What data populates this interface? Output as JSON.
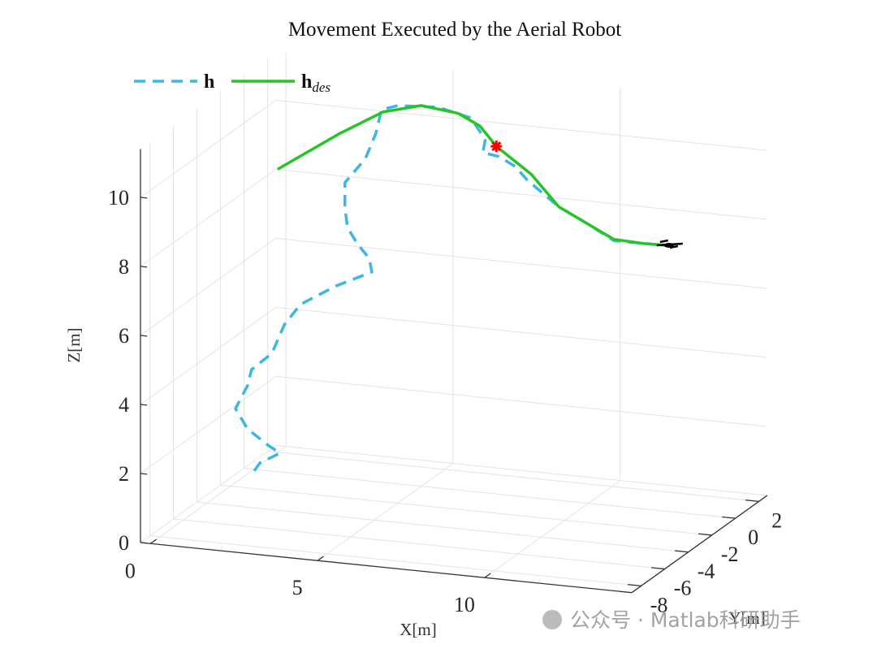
{
  "chart_data": {
    "type": "line3d",
    "title": "Movement Executed by the Aerial Robot",
    "xlabel": "X[m]",
    "ylabel": "Y[m]",
    "zlabel": "Z[m]",
    "xlim": [
      -0.3,
      14.4
    ],
    "ylim": [
      -8.8,
      2.7
    ],
    "zlim": [
      0,
      11.4
    ],
    "xticks": [
      0,
      5,
      10
    ],
    "yticks": [
      -8,
      -6,
      -4,
      -2,
      0,
      2
    ],
    "zticks": [
      0,
      2,
      4,
      6,
      8,
      10
    ],
    "grid": true,
    "legend": "top-left",
    "series": [
      {
        "name": "h",
        "color": "#3db6e3",
        "dash": true,
        "x": [
          1.06,
          1.23,
          1.83,
          1.47,
          0.86,
          0.5,
          0.86,
          0.98,
          1.59,
          1.96,
          2.44,
          3.53,
          4.58,
          4.5,
          4.14,
          3.85,
          3.42,
          3.07,
          3.33,
          3.46,
          3.53,
          4.12,
          5.51,
          6.66,
          7.16,
          7.2,
          7.68,
          8.34,
          8.88,
          10,
          11,
          12,
          13.7
        ],
        "y": [
          -3,
          -3,
          -3,
          -3,
          -3,
          -3,
          -3,
          -3,
          -3,
          -3,
          -3,
          -3,
          -3,
          -3,
          -3,
          -3,
          -2,
          -1,
          0,
          0.5,
          0.8,
          0.5,
          0,
          -0.5,
          -0.7,
          -1,
          -1,
          -1.5,
          -2,
          -2.5,
          -3,
          -3.5,
          -4
        ],
        "z": [
          0.79,
          1.04,
          1.38,
          1.58,
          1.99,
          2.54,
          3.24,
          3.72,
          4.25,
          5.11,
          5.75,
          6.4,
          6.9,
          7.29,
          7.68,
          8.12,
          8.42,
          8.85,
          9.33,
          9.93,
          10.57,
          10.82,
          11.03,
          10.96,
          10.43,
          10.13,
          10.06,
          9.96,
          9.74,
          9.2,
          8.95,
          8.66,
          8.82
        ]
      },
      {
        "name": "h",
        "name_subscript": "des",
        "color": "#27c427",
        "dash": false,
        "x": [
          0,
          2,
          3.5,
          5,
          6.2,
          7,
          7.6,
          9,
          10,
          11,
          12,
          13,
          13.7
        ],
        "y": [
          2,
          1.5,
          1,
          0,
          -0.3,
          -0.7,
          -1,
          -2,
          -2.5,
          -3,
          -3.5,
          -3.8,
          -4
        ],
        "z": [
          8.2,
          9.54,
          10.45,
          11.03,
          11.0,
          10.81,
          10.35,
          9.92,
          9.2,
          8.95,
          8.7,
          8.75,
          8.82
        ]
      }
    ],
    "marker": {
      "x": 7.6,
      "y": -1,
      "z": 10.35,
      "color": "#ff0000"
    }
  },
  "watermark": "公众号 · Matlab科研助手"
}
